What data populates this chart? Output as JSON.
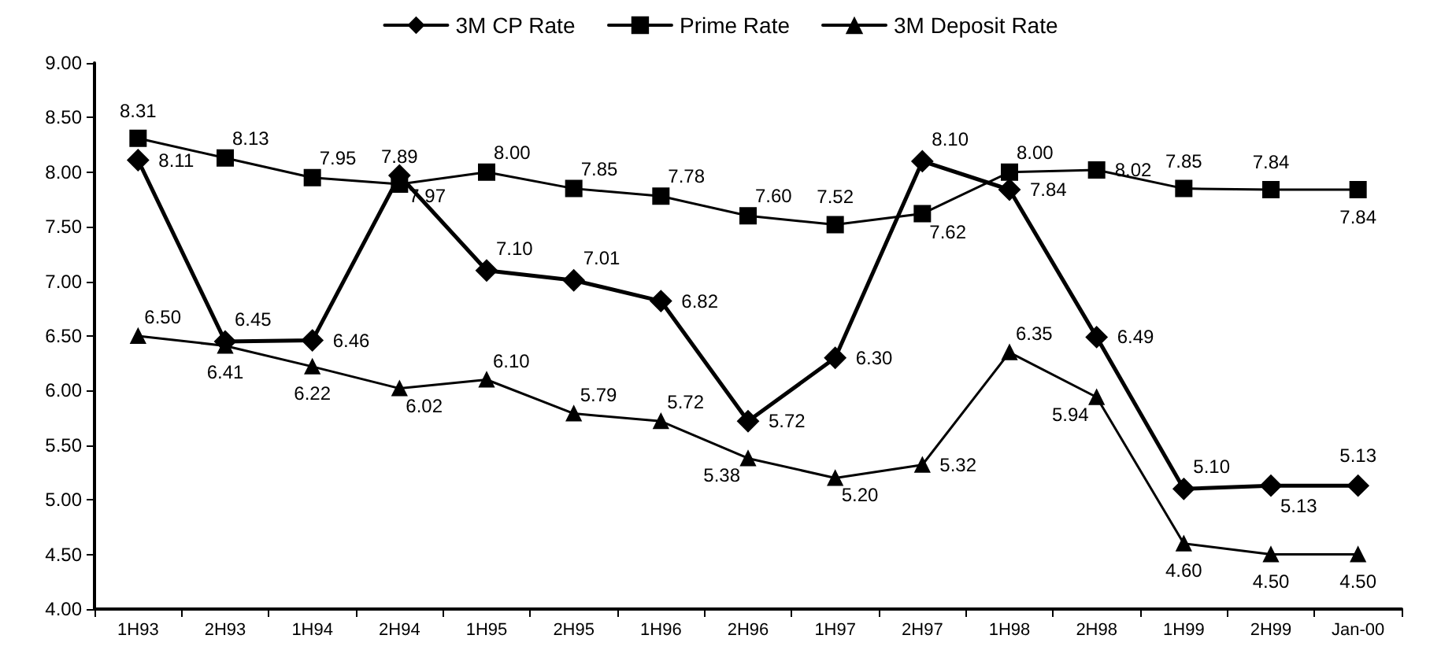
{
  "chart_data": {
    "type": "line",
    "categories": [
      "1H93",
      "2H93",
      "1H94",
      "2H94",
      "1H95",
      "2H95",
      "1H96",
      "2H96",
      "1H97",
      "2H97",
      "1H98",
      "2H98",
      "1H99",
      "2H99",
      "Jan-00"
    ],
    "series": [
      {
        "name": "3M CP Rate",
        "color": "#000000",
        "marker": "diamond",
        "values": [
          8.11,
          6.45,
          6.46,
          7.97,
          7.1,
          7.01,
          6.82,
          5.72,
          6.3,
          8.1,
          7.84,
          6.49,
          5.1,
          5.13,
          5.13
        ],
        "value_labels": [
          "8.11",
          "6.45",
          "6.46",
          "7.97",
          "7.10",
          "7.01",
          "6.82",
          "5.72",
          "6.30",
          "8.10",
          "7.84",
          "6.49",
          "5.10",
          "5.13",
          "5.13"
        ]
      },
      {
        "name": "Prime Rate",
        "color": "#000000",
        "marker": "square",
        "values": [
          8.31,
          8.13,
          7.95,
          7.89,
          8.0,
          7.85,
          7.78,
          7.6,
          7.52,
          7.62,
          8.0,
          8.02,
          7.85,
          7.84,
          7.84
        ],
        "value_labels": [
          "8.31",
          "8.13",
          "7.95",
          "7.89",
          "8.00",
          "7.85",
          "7.78",
          "7.60",
          "7.52",
          "7.62",
          "8.00",
          "8.02",
          "7.85",
          "7.84",
          "7.84"
        ]
      },
      {
        "name": "3M Deposit Rate",
        "color": "#000000",
        "marker": "triangle",
        "values": [
          6.5,
          6.41,
          6.22,
          6.02,
          6.1,
          5.79,
          5.72,
          5.38,
          5.2,
          5.32,
          6.35,
          5.94,
          4.6,
          4.5,
          4.5
        ],
        "value_labels": [
          "6.50",
          "6.41",
          "6.22",
          "6.02",
          "6.10",
          "5.79",
          "5.72",
          "5.38",
          "5.20",
          "5.32",
          "6.35",
          "5.94",
          "4.60",
          "4.50",
          "4.50"
        ]
      }
    ],
    "ylim": [
      4,
      9
    ],
    "yticks": [
      "4.00",
      "4.50",
      "5.00",
      "5.50",
      "6.00",
      "6.50",
      "7.00",
      "7.50",
      "8.00",
      "8.50",
      "9.00"
    ],
    "grid": false,
    "legend": "top"
  }
}
